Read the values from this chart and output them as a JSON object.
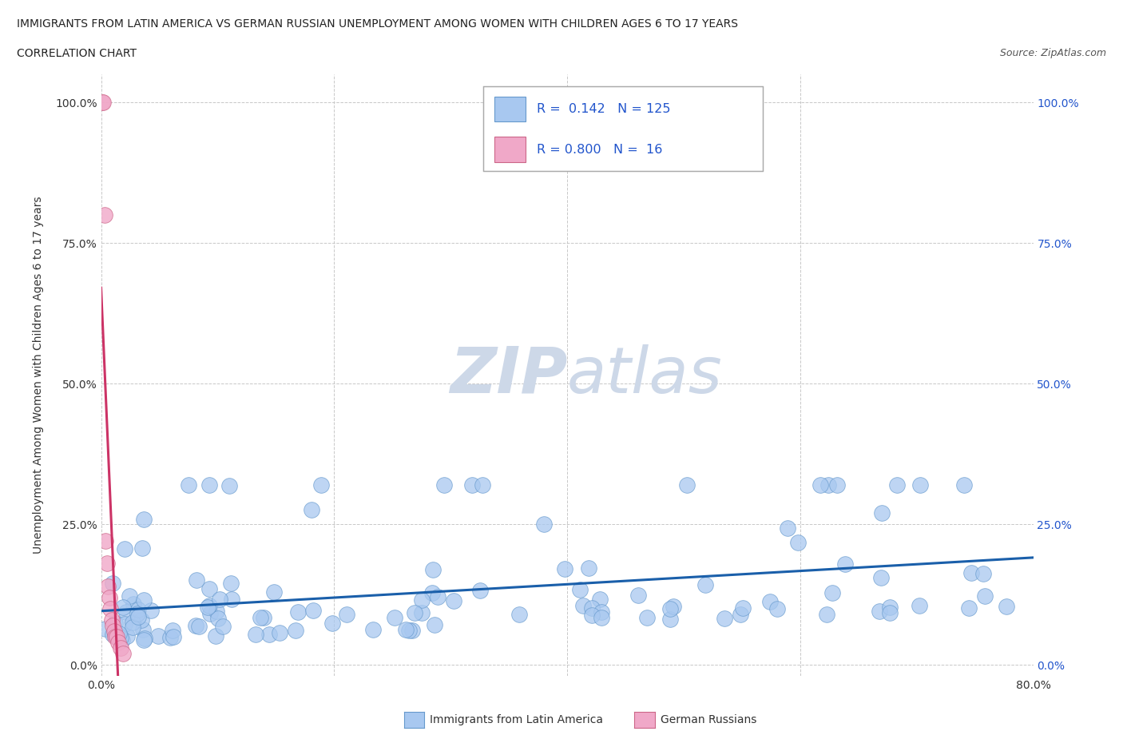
{
  "title_line1": "IMMIGRANTS FROM LATIN AMERICA VS GERMAN RUSSIAN UNEMPLOYMENT AMONG WOMEN WITH CHILDREN AGES 6 TO 17 YEARS",
  "title_line2": "CORRELATION CHART",
  "source_text": "Source: ZipAtlas.com",
  "ylabel": "Unemployment Among Women with Children Ages 6 to 17 years",
  "blue_R": 0.142,
  "blue_N": 125,
  "pink_R": 0.8,
  "pink_N": 16,
  "blue_color": "#a8c8f0",
  "pink_color": "#f0a8c8",
  "blue_edge_color": "#6699cc",
  "pink_edge_color": "#cc6688",
  "blue_line_color": "#1a5faa",
  "pink_line_color": "#cc3366",
  "watermark_color": "#cdd8e8",
  "background_color": "#ffffff",
  "grid_color": "#c8c8c8",
  "text_color": "#222222",
  "right_tick_color": "#2255cc",
  "xlim": [
    0.0,
    0.8
  ],
  "ylim": [
    -0.02,
    1.05
  ],
  "x_ticks": [
    0.0,
    0.2,
    0.4,
    0.6,
    0.8
  ],
  "y_ticks": [
    0.0,
    0.25,
    0.5,
    0.75,
    1.0
  ]
}
